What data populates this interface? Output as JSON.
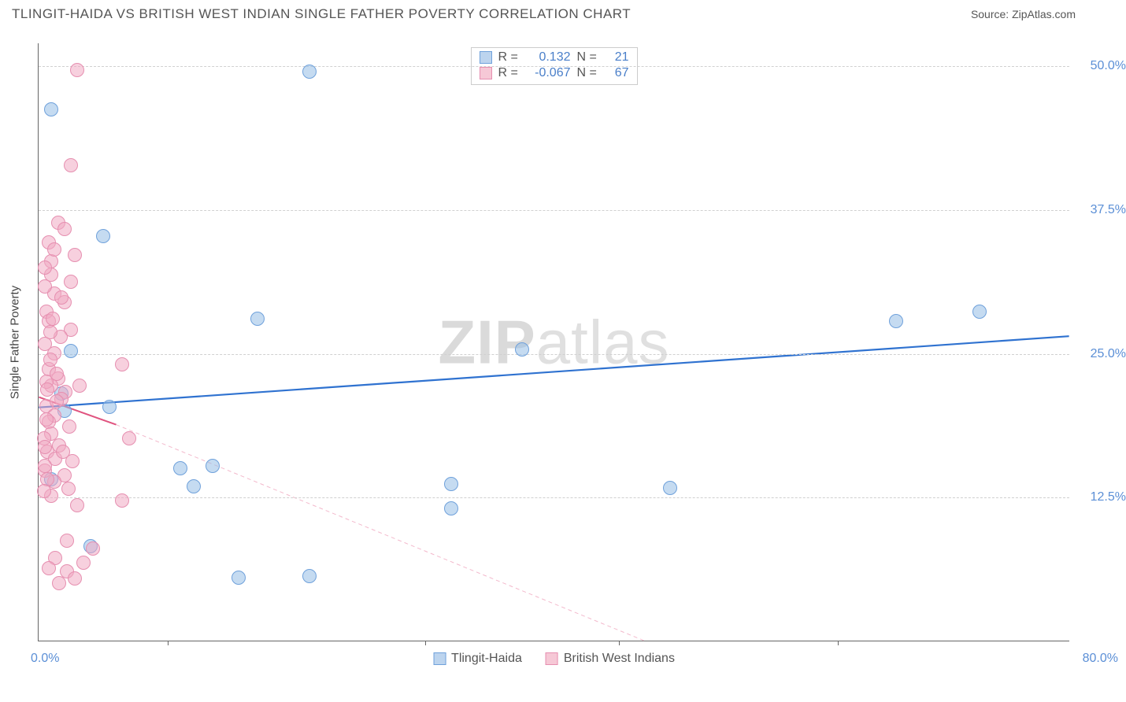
{
  "title": "TLINGIT-HAIDA VS BRITISH WEST INDIAN SINGLE FATHER POVERTY CORRELATION CHART",
  "source_label": "Source: ZipAtlas.com",
  "watermark": {
    "bold": "ZIP",
    "rest": "atlas"
  },
  "chart": {
    "type": "scatter",
    "ylabel": "Single Father Poverty",
    "xlim": [
      0,
      80
    ],
    "ylim": [
      0,
      52
    ],
    "x_origin_label": "0.0%",
    "x_max_label": "80.0%",
    "y_ticks": [
      {
        "v": 12.5,
        "label": "12.5%"
      },
      {
        "v": 25.0,
        "label": "25.0%"
      },
      {
        "v": 37.5,
        "label": "37.5%"
      },
      {
        "v": 50.0,
        "label": "50.0%"
      }
    ],
    "x_tick_positions": [
      10,
      30,
      45,
      62
    ],
    "grid_color": "#d0d0d0",
    "background_color": "#ffffff",
    "axis_color": "#666666",
    "label_fontsize": 15,
    "tick_fontsize": 16,
    "tick_label_color": "#5b8fd6"
  },
  "legend_top": [
    {
      "swatch_fill": "#bcd4ee",
      "swatch_border": "#6fa1db",
      "R_label": "R =",
      "R": "0.132",
      "N_label": "N =",
      "N": "21"
    },
    {
      "swatch_fill": "#f6c8d6",
      "swatch_border": "#e68fb0",
      "R_label": "R =",
      "R": "-0.067",
      "N_label": "N =",
      "N": "67"
    }
  ],
  "legend_bottom": [
    {
      "swatch_fill": "#bcd4ee",
      "swatch_border": "#6fa1db",
      "label": "Tlingit-Haida"
    },
    {
      "swatch_fill": "#f6c8d6",
      "swatch_border": "#e68fb0",
      "label": "British West Indians"
    }
  ],
  "series": [
    {
      "name": "Tlingit-Haida",
      "marker_fill": "rgba(150,190,230,0.55)",
      "marker_border": "#6fa1db",
      "marker_radius": 9,
      "marker_border_width": 1.5,
      "points": [
        [
          1.0,
          46.2
        ],
        [
          5.0,
          35.2
        ],
        [
          2.5,
          25.2
        ],
        [
          2.0,
          20.0
        ],
        [
          5.5,
          20.3
        ],
        [
          11.0,
          15.0
        ],
        [
          13.5,
          15.2
        ],
        [
          12.0,
          13.4
        ],
        [
          15.5,
          5.5
        ],
        [
          21.0,
          5.6
        ],
        [
          4.0,
          8.2
        ],
        [
          1.0,
          14.0
        ],
        [
          17.0,
          28.0
        ],
        [
          21.0,
          49.5
        ],
        [
          32.0,
          13.6
        ],
        [
          32.0,
          11.5
        ],
        [
          37.5,
          25.3
        ],
        [
          49.0,
          13.3
        ],
        [
          66.5,
          27.8
        ],
        [
          73.0,
          28.6
        ],
        [
          1.8,
          21.5
        ]
      ],
      "trend": {
        "x1": 0,
        "y1": 20.3,
        "x2": 80,
        "y2": 26.5,
        "color": "#2f72d0",
        "width": 2.2,
        "dash": "none",
        "extrap": null
      }
    },
    {
      "name": "British West Indians",
      "marker_fill": "rgba(240,170,195,0.55)",
      "marker_border": "#e68fb0",
      "marker_radius": 9,
      "marker_border_width": 1.5,
      "points": [
        [
          3.0,
          49.6
        ],
        [
          2.5,
          41.3
        ],
        [
          1.5,
          36.3
        ],
        [
          2.0,
          35.8
        ],
        [
          0.8,
          34.6
        ],
        [
          2.8,
          33.5
        ],
        [
          1.0,
          33.0
        ],
        [
          1.0,
          31.8
        ],
        [
          2.5,
          31.2
        ],
        [
          1.2,
          30.2
        ],
        [
          0.6,
          28.6
        ],
        [
          0.8,
          27.8
        ],
        [
          2.5,
          27.0
        ],
        [
          0.5,
          25.8
        ],
        [
          1.2,
          25.0
        ],
        [
          6.5,
          24.0
        ],
        [
          0.8,
          23.6
        ],
        [
          1.5,
          22.8
        ],
        [
          1.0,
          22.2
        ],
        [
          2.1,
          21.6
        ],
        [
          1.8,
          21.0
        ],
        [
          0.6,
          20.4
        ],
        [
          1.2,
          19.6
        ],
        [
          0.8,
          19.0
        ],
        [
          2.4,
          18.6
        ],
        [
          1.0,
          18.0
        ],
        [
          7.0,
          17.6
        ],
        [
          1.6,
          17.0
        ],
        [
          0.7,
          16.4
        ],
        [
          1.3,
          15.8
        ],
        [
          0.5,
          14.8
        ],
        [
          2.0,
          14.4
        ],
        [
          1.2,
          13.8
        ],
        [
          6.5,
          12.2
        ],
        [
          3.0,
          11.8
        ],
        [
          4.2,
          8.0
        ],
        [
          3.5,
          6.8
        ],
        [
          2.2,
          6.0
        ],
        [
          2.8,
          5.4
        ],
        [
          1.3,
          7.2
        ],
        [
          1.0,
          12.6
        ],
        [
          2.3,
          13.2
        ],
        [
          0.6,
          22.5
        ],
        [
          1.4,
          23.2
        ],
        [
          0.9,
          24.4
        ],
        [
          1.7,
          26.4
        ],
        [
          0.5,
          30.8
        ],
        [
          2.0,
          29.4
        ],
        [
          1.1,
          28.0
        ],
        [
          0.6,
          19.2
        ],
        [
          0.4,
          17.6
        ],
        [
          1.9,
          16.4
        ],
        [
          0.5,
          15.2
        ],
        [
          2.6,
          15.6
        ],
        [
          1.4,
          20.8
        ],
        [
          0.7,
          21.8
        ],
        [
          3.2,
          22.2
        ],
        [
          0.9,
          26.8
        ],
        [
          1.8,
          29.8
        ],
        [
          0.5,
          32.4
        ],
        [
          1.2,
          34.0
        ],
        [
          0.7,
          14.0
        ],
        [
          0.4,
          13.0
        ],
        [
          2.2,
          8.7
        ],
        [
          0.8,
          6.3
        ],
        [
          1.6,
          5.0
        ],
        [
          0.5,
          16.8
        ]
      ],
      "trend": {
        "x1": 0,
        "y1": 21.2,
        "x2": 6,
        "y2": 18.8,
        "color": "#e0537f",
        "width": 2,
        "dash": "none",
        "extrap": {
          "x1": 6,
          "y1": 18.8,
          "x2": 47,
          "y2": 0,
          "color": "#f3b9cc",
          "width": 1,
          "dash": "5,4"
        }
      }
    }
  ]
}
